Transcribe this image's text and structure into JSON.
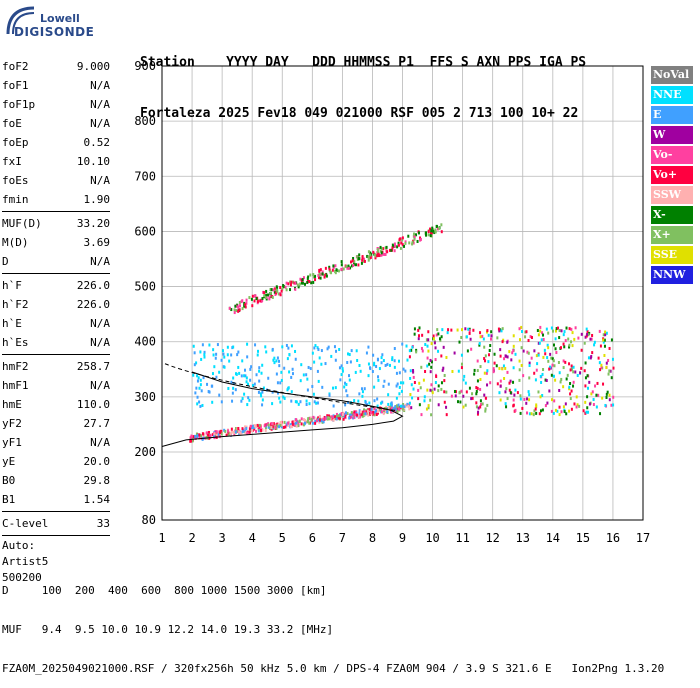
{
  "logo": {
    "line1": "Lowell",
    "line2": "DIGISONDE"
  },
  "header": {
    "line1": "Station    YYYY DAY   DDD HHMMSS P1  FFS S AXN PPS IGA PS",
    "line2": "Fortaleza 2025 Fev18 049 021000 RSF 005 2 713 100 10+ 22"
  },
  "params_group1": [
    {
      "name": "foF2",
      "value": "9.000"
    },
    {
      "name": "foF1",
      "value": "N/A"
    },
    {
      "name": "foF1p",
      "value": "N/A"
    },
    {
      "name": "foE",
      "value": "N/A"
    },
    {
      "name": "foEp",
      "value": "0.52"
    },
    {
      "name": "fxI",
      "value": "10.10"
    },
    {
      "name": "foEs",
      "value": "N/A"
    },
    {
      "name": "fmin",
      "value": "1.90"
    }
  ],
  "params_group2": [
    {
      "name": "MUF(D)",
      "value": "33.20"
    },
    {
      "name": "M(D)",
      "value": "3.69"
    },
    {
      "name": "D",
      "value": "N/A"
    }
  ],
  "params_group3": [
    {
      "name": "h`F",
      "value": "226.0"
    },
    {
      "name": "h`F2",
      "value": "226.0"
    },
    {
      "name": "h`E",
      "value": "N/A"
    },
    {
      "name": "h`Es",
      "value": "N/A"
    }
  ],
  "params_group4": [
    {
      "name": "hmF2",
      "value": "258.7"
    },
    {
      "name": "hmF1",
      "value": "N/A"
    },
    {
      "name": "hmE",
      "value": "110.0"
    },
    {
      "name": "yF2",
      "value": "27.7"
    },
    {
      "name": "yF1",
      "value": "N/A"
    },
    {
      "name": "yE",
      "value": "20.0"
    },
    {
      "name": "B0",
      "value": "29.8"
    },
    {
      "name": "B1",
      "value": "1.54"
    }
  ],
  "params_group5": [
    {
      "name": "C-level",
      "value": "33"
    }
  ],
  "autoscale": {
    "line1": "Auto:",
    "line2": "Artist5",
    "line3": "500200"
  },
  "legend": [
    {
      "label": "NoVal",
      "color": "#808080"
    },
    {
      "label": "NNE",
      "color": "#00e0ff"
    },
    {
      "label": "E",
      "color": "#40a0ff"
    },
    {
      "label": "W",
      "color": "#a000a0"
    },
    {
      "label": "Vo-",
      "color": "#ff40a0"
    },
    {
      "label": "Vo+",
      "color": "#ff0040"
    },
    {
      "label": "SSW",
      "color": "#ffb0b0"
    },
    {
      "label": "X-",
      "color": "#008000"
    },
    {
      "label": "X+",
      "color": "#80c060"
    },
    {
      "label": "SSE",
      "color": "#e0e000"
    },
    {
      "label": "NNW",
      "color": "#2020e0"
    }
  ],
  "footer": {
    "line1": "D     100  200  400  600  800 1000 1500 3000 [km]",
    "line2": "MUF   9.4  9.5 10.0 10.9 12.2 14.0 19.3 33.2 [MHz]",
    "line3": "FZA0M_2025049021000.RSF / 320fx256h 50 kHz 5.0 km / DPS-4 FZA0M 904 / 3.9 S 321.6 E   Ion2Png 1.3.20"
  },
  "chart_data": {
    "type": "scatter",
    "xlim": [
      1,
      17
    ],
    "ylim": [
      80,
      900
    ],
    "xticks": [
      1,
      2,
      3,
      4,
      5,
      6,
      7,
      8,
      9,
      10,
      11,
      12,
      13,
      14,
      15,
      16,
      17
    ],
    "yticks": [
      80,
      200,
      300,
      400,
      500,
      600,
      700,
      800,
      900
    ],
    "grid": true,
    "legend_position": "right",
    "echo_bands": [
      {
        "name": "F2 trace (o/x)",
        "x": [
          1.9,
          9.2
        ],
        "y": [
          228,
          285
        ],
        "colors": [
          "Vo+",
          "Vo-",
          "X+",
          "SSW",
          "E"
        ]
      },
      {
        "name": "F2 high-frequency spread",
        "x": [
          9.2,
          16
        ],
        "y": [
          270,
          430
        ],
        "colors": [
          "Vo+",
          "Vo-",
          "W",
          "NNE",
          "SSE",
          "X-",
          "X+"
        ]
      },
      {
        "name": "Second hop F",
        "x": [
          3.2,
          10.3
        ],
        "y": [
          460,
          610
        ],
        "colors": [
          "Vo+",
          "Vo-",
          "X+",
          "X-"
        ]
      },
      {
        "name": "Oblique E-spread",
        "x": [
          2,
          9.3
        ],
        "y": [
          285,
          400
        ],
        "colors": [
          "E",
          "NNE"
        ]
      }
    ],
    "profile_curve": {
      "x": [
        1,
        1.8,
        3,
        4,
        5,
        6,
        7,
        8,
        8.7,
        9.0,
        8.6,
        8,
        7,
        6,
        5,
        4,
        3,
        2
      ],
      "y": [
        210,
        222,
        228,
        232,
        236,
        240,
        244,
        250,
        256,
        265,
        276,
        283,
        293,
        300,
        307,
        315,
        327,
        345
      ]
    }
  }
}
